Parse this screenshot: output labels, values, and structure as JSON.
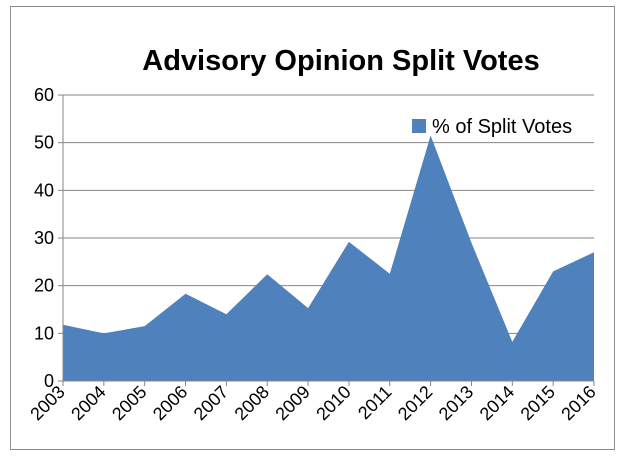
{
  "chart_data": {
    "type": "area",
    "title": "Advisory Opinion Split Votes",
    "xlabel": "",
    "ylabel": "",
    "categories": [
      "2003",
      "2004",
      "2005",
      "2006",
      "2007",
      "2008",
      "2009",
      "2010",
      "2011",
      "2012",
      "2013",
      "2014",
      "2015",
      "2016"
    ],
    "series": [
      {
        "name": "% of Split Votes",
        "color": "#4f81bd",
        "values": [
          11.8,
          10,
          11.5,
          18.3,
          14,
          22.4,
          15.3,
          29.2,
          22.5,
          51.5,
          29,
          8.2,
          23,
          27
        ]
      }
    ],
    "ylim": [
      0,
      60
    ],
    "yticks": [
      0,
      10,
      20,
      30,
      40,
      50,
      60
    ],
    "grid": true,
    "legend": "top-right"
  }
}
